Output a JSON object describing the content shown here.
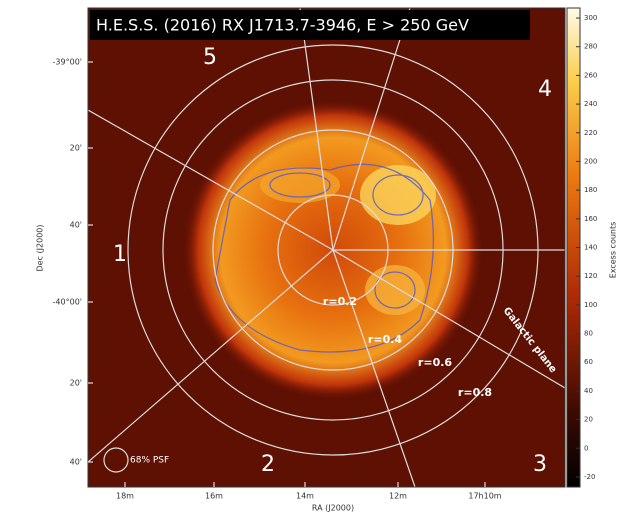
{
  "title": "H.E.S.S. (2016) RX J1713.7-3946, E > 250 GeV",
  "sectors": [
    "1",
    "2",
    "3",
    "4",
    "5"
  ],
  "rings": [
    "r=0.2",
    "r=0.4",
    "r=0.6",
    "r=0.8"
  ],
  "galactic_plane": "Galactic plane",
  "psf": "68% PSF",
  "ra_axis": {
    "label": "RA (J2000)",
    "ticks": [
      "18m",
      "16m",
      "14m",
      "12m",
      "17h10m"
    ]
  },
  "dec_axis": {
    "label": "Dec (J2000)",
    "ticks": [
      "-39°00'",
      "20'",
      "40'",
      "-40°00'",
      "20'",
      "40'"
    ]
  },
  "colorbar": {
    "label": "Excess counts",
    "lim": [
      -27,
      307
    ],
    "ticks": [
      -20,
      0,
      20,
      40,
      60,
      80,
      100,
      120,
      140,
      160,
      180,
      200,
      220,
      240,
      260,
      280,
      300
    ]
  }
}
